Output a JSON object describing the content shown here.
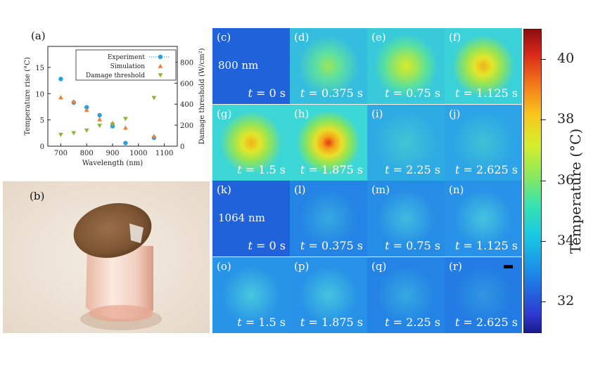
{
  "panel_a": {
    "label": "(a)",
    "chart_data": {
      "type": "scatter",
      "xlabel": "Wavelength (nm)",
      "ylabel": "Temperature rise (°C)",
      "y2label": "Damage threshold (W/cm²)",
      "xlim": [
        650,
        1150
      ],
      "ylim": [
        0,
        19
      ],
      "y2lim": [
        0,
        950
      ],
      "xticks": [
        700,
        800,
        900,
        1000,
        1100
      ],
      "yticks": [
        0,
        5,
        10,
        15
      ],
      "y2ticks": [
        0,
        200,
        400,
        600,
        800
      ],
      "legend_position": "top-right",
      "series": [
        {
          "name": "Experiment",
          "axis": "left",
          "color": "#2a9fe0",
          "marker": "circle",
          "x": [
            700,
            750,
            800,
            850,
            900,
            950,
            1060
          ],
          "y": [
            12.8,
            8.3,
            7.4,
            5.9,
            3.8,
            0.6,
            1.6
          ]
        },
        {
          "name": "Simulation",
          "axis": "left",
          "color": "#ef7f3c",
          "marker": "triangle-up",
          "x": [
            700,
            750,
            800,
            850,
            900,
            950,
            1060
          ],
          "y": [
            9.3,
            8.5,
            6.9,
            5.1,
            4.4,
            3.5,
            1.9
          ]
        },
        {
          "name": "Damage threshold",
          "axis": "right",
          "color": "#8ab833",
          "marker": "triangle-down",
          "x": [
            700,
            750,
            800,
            850,
            900,
            950,
            1060
          ],
          "y": [
            110,
            125,
            150,
            195,
            205,
            260,
            460
          ]
        }
      ]
    }
  },
  "panel_b": {
    "label": "(b)"
  },
  "heatmaps": {
    "wavelength_800": "800 nm",
    "wavelength_1064": "1064 nm",
    "tiles": [
      {
        "label": "(c)",
        "t": "0 s",
        "intensity": 0.0,
        "row": 0
      },
      {
        "label": "(d)",
        "t": "0.375 s",
        "intensity": 0.55,
        "row": 0
      },
      {
        "label": "(e)",
        "t": "0.75 s",
        "intensity": 0.72,
        "row": 0
      },
      {
        "label": "(f)",
        "t": "1.125 s",
        "intensity": 0.82,
        "row": 0
      },
      {
        "label": "(g)",
        "t": "1.5 s",
        "intensity": 0.9,
        "row": 1
      },
      {
        "label": "(h)",
        "t": "1.875 s",
        "intensity": 0.96,
        "row": 1
      },
      {
        "label": "(i)",
        "t": "2.25 s",
        "intensity": 0.3,
        "row": 1
      },
      {
        "label": "(j)",
        "t": "2.625 s",
        "intensity": 0.2,
        "row": 1
      },
      {
        "label": "(k)",
        "t": "0 s",
        "intensity": 0.0,
        "row": 2
      },
      {
        "label": "(l)",
        "t": "0.375 s",
        "intensity": 0.18,
        "row": 2
      },
      {
        "label": "(m)",
        "t": "0.75 s",
        "intensity": 0.26,
        "row": 2
      },
      {
        "label": "(n)",
        "t": "1.125 s",
        "intensity": 0.3,
        "row": 2
      },
      {
        "label": "(o)",
        "t": "1.5 s",
        "intensity": 0.32,
        "row": 3
      },
      {
        "label": "(p)",
        "t": "1.875 s",
        "intensity": 0.3,
        "row": 3
      },
      {
        "label": "(q)",
        "t": "2.25 s",
        "intensity": 0.18,
        "row": 3
      },
      {
        "label": "(r)",
        "t": "2.625 s",
        "intensity": 0.12,
        "row": 3
      }
    ]
  },
  "colorbar": {
    "label": "Temperature (°C)",
    "min": 31,
    "max": 41,
    "ticks": [
      32,
      34,
      36,
      38,
      40
    ]
  }
}
